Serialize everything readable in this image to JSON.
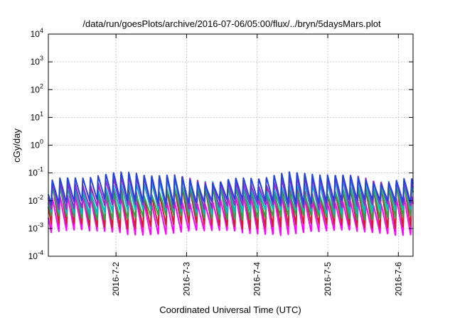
{
  "chart_data": {
    "type": "line",
    "title": "/data/run/goesPlots/archive/2016-07-06/05:00/flux/../bryn/5daysMars.plot",
    "xlabel": "Coordinated Universal Time (UTC)",
    "ylabel": "cGy/day",
    "y_scale": "log",
    "ylim": [
      0.0001,
      10000
    ],
    "y_ticks": [
      {
        "value": 0.0001,
        "base": "10",
        "exp": "-4"
      },
      {
        "value": 0.001,
        "base": "10",
        "exp": "-3"
      },
      {
        "value": 0.01,
        "base": "10",
        "exp": "-2"
      },
      {
        "value": 0.1,
        "base": "10",
        "exp": "-1"
      },
      {
        "value": 1,
        "base": "10",
        "exp": "0"
      },
      {
        "value": 10,
        "base": "10",
        "exp": "1"
      },
      {
        "value": 100,
        "base": "10",
        "exp": "2"
      },
      {
        "value": 1000,
        "base": "10",
        "exp": "3"
      },
      {
        "value": 10000,
        "base": "10",
        "exp": "4"
      }
    ],
    "xlim": [
      "2016-07-01T01:00",
      "2016-07-06T05:00"
    ],
    "x_ticks": [
      {
        "value": "2016-07-02T00:00",
        "label": "2016-7-2"
      },
      {
        "value": "2016-07-03T00:00",
        "label": "2016-7-3"
      },
      {
        "value": "2016-07-04T00:00",
        "label": "2016-7-4"
      },
      {
        "value": "2016-07-05T00:00",
        "label": "2016-7-5"
      },
      {
        "value": "2016-07-06T00:00",
        "label": "2016-7-6"
      }
    ],
    "grid": true,
    "legend": "none",
    "pattern": {
      "period_hours": 2.6,
      "phase_hours": 1.0
    },
    "series": [
      {
        "color": "#ff00ff",
        "peak": 0.012,
        "trough": 0.0007
      },
      {
        "color": "#cc2222",
        "peak": 0.03,
        "trough": 0.0012
      },
      {
        "color": "#22aa44",
        "peak": 0.025,
        "trough": 0.0025
      },
      {
        "color": "#00bbcc",
        "peak": 0.045,
        "trough": 0.004
      },
      {
        "color": "#aa22cc",
        "peak": 0.06,
        "trough": 0.006
      },
      {
        "color": "#2244dd",
        "peak": 0.075,
        "trough": 0.009
      }
    ]
  }
}
